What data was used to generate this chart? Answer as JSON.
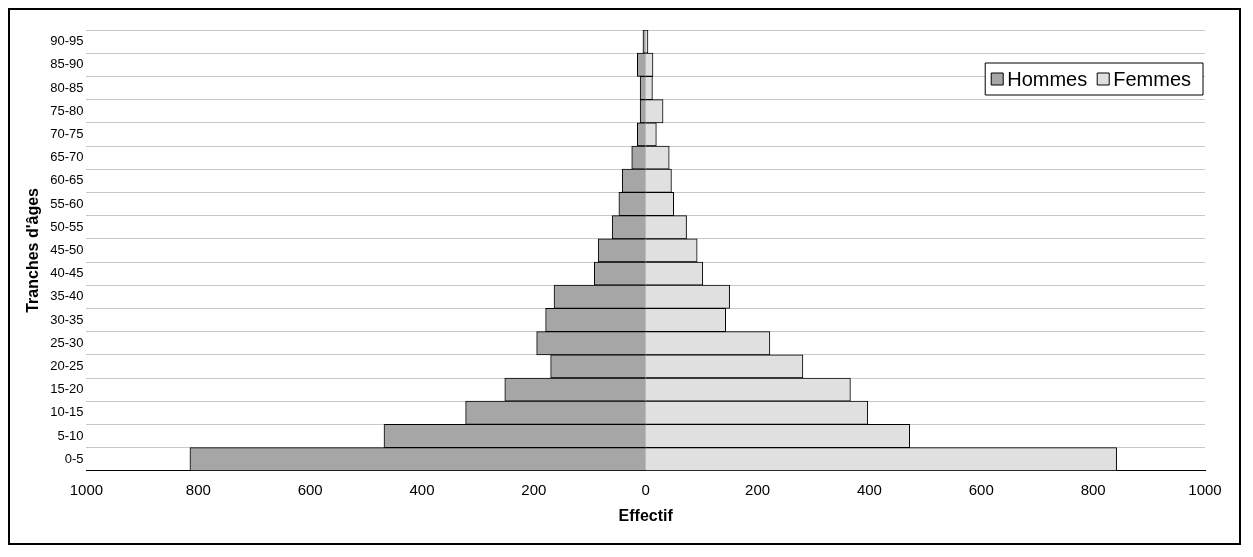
{
  "chart_data": {
    "type": "bar",
    "orientation": "horizontal",
    "stacked": true,
    "xlabel": "Effectif",
    "ylabel": "Tranches d'âges",
    "categories": [
      "90-95",
      "85-90",
      "80-85",
      "75-80",
      "70-75",
      "65-70",
      "60-65",
      "55-60",
      "50-55",
      "45-50",
      "40-45",
      "35-40",
      "30-35",
      "25-30",
      "20-25",
      "15-20",
      "10-15",
      "5-10",
      "0-5"
    ],
    "series": [
      {
        "name": "Hommes",
        "color": "#a6a6a6",
        "values": [
          -5,
          -15,
          -10,
          -10,
          -15,
          -25,
          -42,
          -48,
          -60,
          -85,
          -92,
          -164,
          -179,
          -195,
          -170,
          -252,
          -322,
          -468,
          -815
        ]
      },
      {
        "name": "Femmes",
        "color": "#e0e0e0",
        "values": [
          4,
          13,
          12,
          31,
          19,
          42,
          46,
          50,
          73,
          92,
          102,
          150,
          143,
          222,
          281,
          366,
          397,
          472,
          842
        ]
      }
    ],
    "xlim": [
      -1000,
      1000
    ],
    "xticks": [
      {
        "value": -1000,
        "label": "1000"
      },
      {
        "value": -800,
        "label": "800"
      },
      {
        "value": -600,
        "label": "600"
      },
      {
        "value": -400,
        "label": "400"
      },
      {
        "value": -200,
        "label": "200"
      },
      0,
      200,
      400,
      600,
      800,
      1000
    ],
    "grid": "y",
    "legend": "top right"
  }
}
